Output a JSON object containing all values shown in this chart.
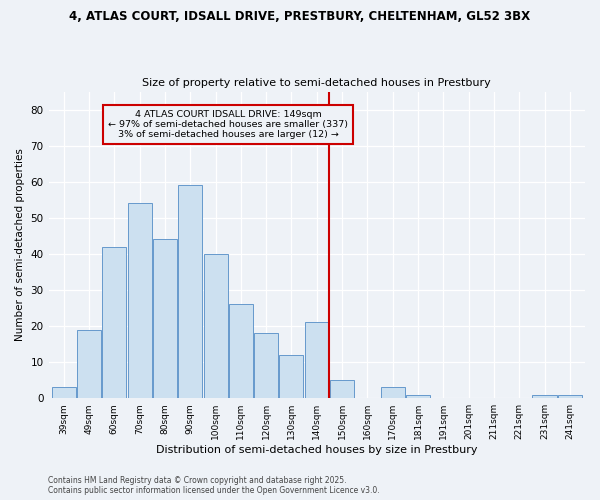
{
  "title_line1": "4, ATLAS COURT, IDSALL DRIVE, PRESTBURY, CHELTENHAM, GL52 3BX",
  "title_line2": "Size of property relative to semi-detached houses in Prestbury",
  "xlabel": "Distribution of semi-detached houses by size in Prestbury",
  "ylabel": "Number of semi-detached properties",
  "categories": [
    "39sqm",
    "49sqm",
    "60sqm",
    "70sqm",
    "80sqm",
    "90sqm",
    "100sqm",
    "110sqm",
    "120sqm",
    "130sqm",
    "140sqm",
    "150sqm",
    "160sqm",
    "170sqm",
    "181sqm",
    "191sqm",
    "201sqm",
    "211sqm",
    "221sqm",
    "231sqm",
    "241sqm"
  ],
  "values": [
    3,
    19,
    42,
    54,
    44,
    59,
    40,
    26,
    18,
    12,
    21,
    5,
    0,
    3,
    1,
    0,
    0,
    0,
    0,
    1,
    1
  ],
  "bar_color": "#cce0f0",
  "bar_edge_color": "#6699cc",
  "reference_line_color": "#cc0000",
  "annotation_text": "4 ATLAS COURT IDSALL DRIVE: 149sqm\n← 97% of semi-detached houses are smaller (337)\n3% of semi-detached houses are larger (12) →",
  "ylim": [
    0,
    85
  ],
  "yticks": [
    0,
    10,
    20,
    30,
    40,
    50,
    60,
    70,
    80
  ],
  "footer_line1": "Contains HM Land Registry data © Crown copyright and database right 2025.",
  "footer_line2": "Contains public sector information licensed under the Open Government Licence v3.0.",
  "background_color": "#eef2f7",
  "grid_color": "#ffffff"
}
